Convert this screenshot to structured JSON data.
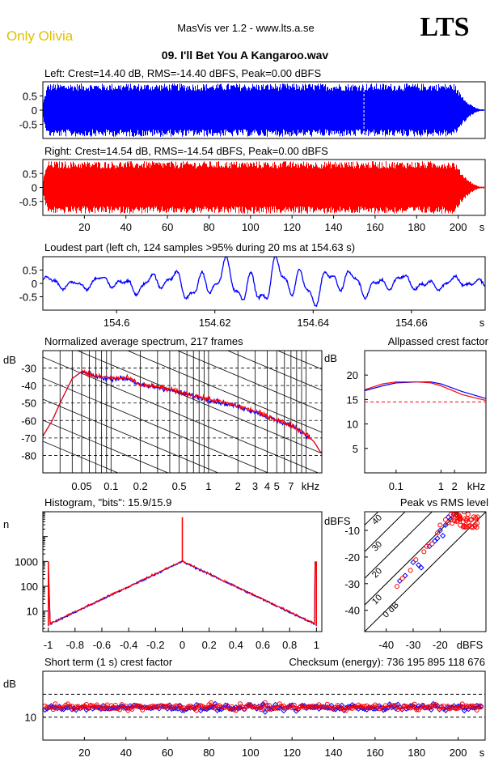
{
  "header": {
    "brand_left": "Only Olivia",
    "app_title": "MasVis ver 1.2 - www.lts.a.se",
    "brand_right": "LTS",
    "file_title": "09. I'll Bet You A Kangaroo.wav"
  },
  "colors": {
    "left": "#0000ff",
    "right": "#ff0000",
    "brand_left": "#e0c000",
    "ref_line": "#ff0000"
  },
  "chart_data": [
    {
      "id": "left-waveform",
      "type": "area",
      "title": "Left: Crest=14.40 dB, RMS=-14.40 dBFS, Peak=0.00 dBFS",
      "yticks": [
        "0.5",
        "0",
        "-0.5"
      ],
      "ylim": [
        -1,
        1
      ],
      "xlim": [
        0,
        213
      ],
      "marker_x": 154.63
    },
    {
      "id": "right-waveform",
      "type": "area",
      "title": "Right: Crest=14.54 dB, RMS=-14.54 dBFS, Peak=0.00 dBFS",
      "yticks": [
        "0.5",
        "0",
        "-0.5"
      ],
      "ylim": [
        -1,
        1
      ],
      "xlim": [
        0,
        213
      ],
      "xticks": [
        "20",
        "40",
        "60",
        "80",
        "100",
        "120",
        "140",
        "160",
        "180",
        "200"
      ],
      "xunit": "s"
    },
    {
      "id": "loudest-part",
      "type": "line",
      "title": "Loudest part (left  ch, 124 samples >95% during 20 ms at 154.63 s)",
      "yticks": [
        "0.5",
        "0",
        "-0.5"
      ],
      "ylim": [
        -1,
        1
      ],
      "xlim": [
        154.585,
        154.675
      ],
      "xticks": [
        "154.6",
        "154.62",
        "154.64",
        "154.66"
      ],
      "xunit": "s"
    },
    {
      "id": "avg-spectrum",
      "type": "line",
      "title": "Normalized average spectrum, 217 frames",
      "ylabel": "dB",
      "yticks": [
        "-30",
        "-40",
        "-50",
        "-60",
        "-70",
        "-80"
      ],
      "ylim": [
        -90,
        -20
      ],
      "xticks": [
        "0.05",
        "0.1",
        "0.2",
        "0.5",
        "1",
        "2",
        "3",
        "4",
        "5",
        "7"
      ],
      "xunit": "kHz",
      "points": [
        [
          0.02,
          -69
        ],
        [
          0.025,
          -60
        ],
        [
          0.03,
          -50
        ],
        [
          0.04,
          -36
        ],
        [
          0.05,
          -32
        ],
        [
          0.07,
          -35
        ],
        [
          0.1,
          -36
        ],
        [
          0.15,
          -36
        ],
        [
          0.2,
          -40
        ],
        [
          0.3,
          -41
        ],
        [
          0.5,
          -44
        ],
        [
          1,
          -48
        ],
        [
          2,
          -52
        ],
        [
          3,
          -55
        ],
        [
          5,
          -60
        ],
        [
          7,
          -63
        ],
        [
          10,
          -68
        ],
        [
          12,
          -72
        ],
        [
          14,
          -78
        ]
      ]
    },
    {
      "id": "allpassed-crest",
      "type": "line",
      "title": "Allpassed crest factor",
      "ylabel": "dB",
      "yticks": [
        "20",
        "15",
        "10",
        "5"
      ],
      "ylim": [
        0,
        25
      ],
      "xticks": [
        "0.1",
        "1",
        "2"
      ],
      "xunit": "kHz",
      "ref_y": 14.5,
      "series": [
        {
          "color": "#0000ff",
          "points": [
            [
              0.02,
              16.8
            ],
            [
              0.05,
              17.8
            ],
            [
              0.1,
              18.4
            ],
            [
              0.3,
              18.6
            ],
            [
              0.6,
              18.6
            ],
            [
              1,
              18.2
            ],
            [
              3,
              16.6
            ],
            [
              10,
              15.2
            ]
          ]
        },
        {
          "color": "#ff0000",
          "points": [
            [
              0.02,
              17.0
            ],
            [
              0.05,
              18.2
            ],
            [
              0.1,
              18.6
            ],
            [
              0.3,
              18.6
            ],
            [
              0.6,
              18.4
            ],
            [
              1,
              17.8
            ],
            [
              3,
              16.0
            ],
            [
              10,
              14.8
            ]
          ]
        }
      ]
    },
    {
      "id": "histogram",
      "type": "line",
      "title": "Histogram, \"bits\": 15.9/15.9",
      "ylabel": "n",
      "yticks": [
        "1000",
        "100",
        "10"
      ],
      "ylim": [
        1.5,
        100000
      ],
      "xticks": [
        "-1",
        "-0.8",
        "-0.6",
        "-0.4",
        "-0.2",
        "0",
        "0.2",
        "0.4",
        "0.6",
        "0.8",
        "1"
      ],
      "xlim": [
        -1.04,
        1.04
      ],
      "peak_center": 1000,
      "edge_value": 1000,
      "spike": 60000
    },
    {
      "id": "peak-vs-rms",
      "type": "scatter",
      "title": "Peak vs RMS level",
      "ylabel": "dBFS",
      "xlabel": "dBFS",
      "yticks": [
        "-10",
        "-20",
        "-30",
        "-40"
      ],
      "ylim": [
        -48,
        -3
      ],
      "xticks": [
        "-40",
        "-30",
        "-20"
      ],
      "xlim": [
        -48,
        -3
      ],
      "diag_labels": [
        "40",
        "30",
        "20",
        "10",
        "0 dB"
      ],
      "points_blue": [
        [
          -35,
          -29
        ],
        [
          -33,
          -27
        ],
        [
          -30,
          -22
        ],
        [
          -28,
          -23
        ],
        [
          -27,
          -24
        ],
        [
          -24,
          -16
        ],
        [
          -22,
          -14
        ],
        [
          -21,
          -13
        ],
        [
          -20,
          -10
        ],
        [
          -19,
          -12
        ],
        [
          -18,
          -8
        ],
        [
          -17,
          -5
        ],
        [
          -16,
          -6
        ],
        [
          -15,
          -4
        ]
      ],
      "points_red": [
        [
          -36,
          -31
        ],
        [
          -34,
          -28
        ],
        [
          -31,
          -25
        ],
        [
          -29,
          -21
        ],
        [
          -26,
          -18
        ],
        [
          -25,
          -16
        ],
        [
          -23,
          -15
        ],
        [
          -21,
          -11
        ],
        [
          -20,
          -8
        ],
        [
          -18,
          -6
        ],
        [
          -17,
          -7
        ],
        [
          -16,
          -4
        ],
        [
          -15,
          -5
        ],
        [
          -14,
          -4
        ]
      ]
    },
    {
      "id": "short-crest",
      "type": "scatter",
      "title": "Short term (1 s) crest factor",
      "checksum": "Checksum (energy):   736 195 895 118 676",
      "ylabel": "dB",
      "yticks": [
        "10"
      ],
      "ylim": [
        5,
        20
      ],
      "xlim": [
        0,
        213
      ],
      "xticks": [
        "20",
        "40",
        "60",
        "80",
        "100",
        "120",
        "140",
        "160",
        "180",
        "200"
      ],
      "xunit": "s",
      "ref_lines": [
        10,
        15
      ]
    }
  ]
}
